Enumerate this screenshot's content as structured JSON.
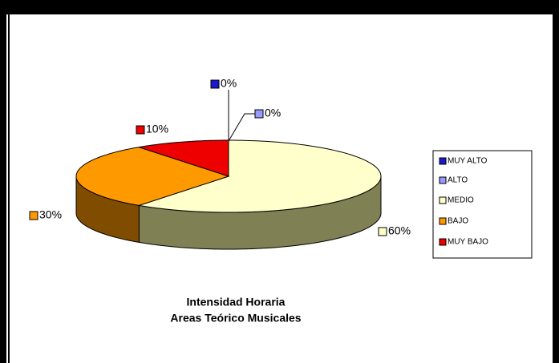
{
  "chart_data": {
    "type": "pie3d",
    "title": [
      "Intensidad Horaria",
      "Areas Teórico Musicales"
    ],
    "categories": [
      "MUY ALTO",
      "ALTO",
      "MEDIO",
      "BAJO",
      "MUY BAJO"
    ],
    "values": [
      0,
      0,
      60,
      30,
      10
    ],
    "value_labels": [
      "0%",
      "0%",
      "60%",
      "30%",
      "10%"
    ],
    "colors": [
      "#1a1acc",
      "#9999ff",
      "#ffffcc",
      "#ff9900",
      "#ee0000"
    ],
    "side_colors": [
      "#0d0d66",
      "#4d4d80",
      "#808055",
      "#804d00",
      "#770000"
    ],
    "legend": "right"
  }
}
